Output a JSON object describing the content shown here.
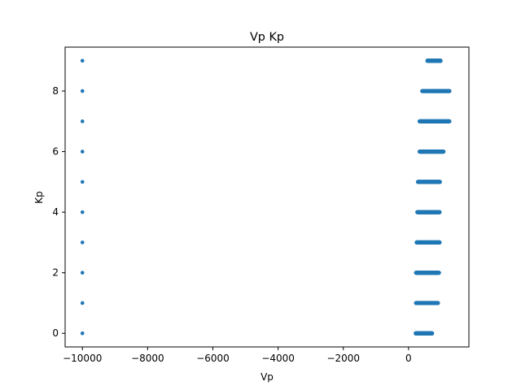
{
  "chart_data": {
    "type": "scatter",
    "title": "Vp Kp",
    "xlabel": "Vp",
    "ylabel": "Kp",
    "xlim": [
      -10530,
      1850
    ],
    "ylim": [
      -0.45,
      9.45
    ],
    "xticks": [
      -10000,
      -8000,
      -6000,
      -4000,
      -2000,
      0
    ],
    "xtick_labels": [
      "−10000",
      "−8000",
      "−6000",
      "−4000",
      "−2000",
      "0"
    ],
    "yticks": [
      0,
      2,
      4,
      6,
      8
    ],
    "ytick_labels": [
      "0",
      "2",
      "4",
      "6",
      "8"
    ],
    "grid": false,
    "marker_color": "#1f77b4",
    "series": [
      {
        "points_outlier": [
          [
            -10000,
            0
          ],
          [
            -10000,
            1
          ],
          [
            -10000,
            2
          ],
          [
            -10000,
            3
          ],
          [
            -10000,
            4
          ],
          [
            -10000,
            5
          ],
          [
            -10000,
            6
          ],
          [
            -10000,
            7
          ],
          [
            -10000,
            8
          ],
          [
            -10000,
            9
          ]
        ],
        "clusters": [
          {
            "kp": 0,
            "vp_min": 220,
            "vp_max": 720
          },
          {
            "kp": 1,
            "vp_min": 230,
            "vp_max": 900
          },
          {
            "kp": 2,
            "vp_min": 230,
            "vp_max": 930
          },
          {
            "kp": 3,
            "vp_min": 250,
            "vp_max": 950
          },
          {
            "kp": 4,
            "vp_min": 270,
            "vp_max": 950
          },
          {
            "kp": 5,
            "vp_min": 290,
            "vp_max": 960
          },
          {
            "kp": 6,
            "vp_min": 340,
            "vp_max": 1070
          },
          {
            "kp": 7,
            "vp_min": 340,
            "vp_max": 1250
          },
          {
            "kp": 8,
            "vp_min": 420,
            "vp_max": 1250
          },
          {
            "kp": 9,
            "vp_min": 580,
            "vp_max": 980
          }
        ]
      }
    ]
  }
}
